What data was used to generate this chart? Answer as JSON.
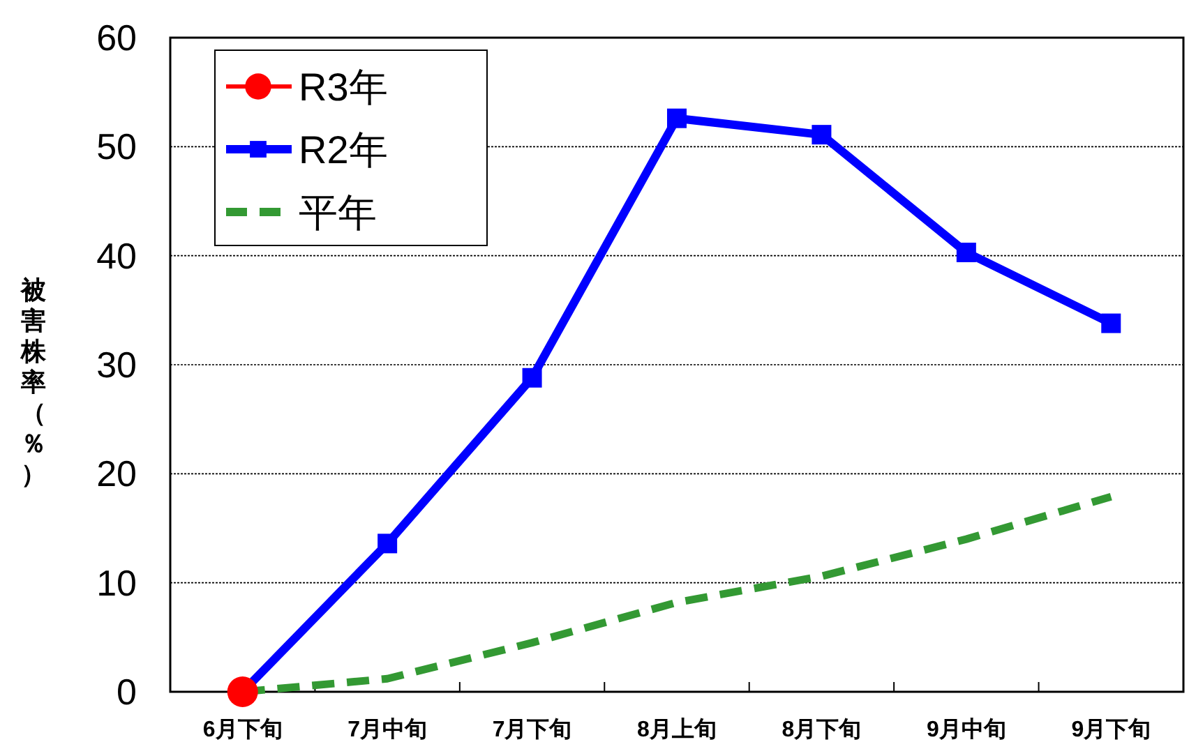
{
  "chart_data": {
    "type": "line",
    "categories": [
      "6月下旬",
      "7月中旬",
      "7月下旬",
      "8月上旬",
      "8月下旬",
      "9月中旬",
      "9月下旬"
    ],
    "ylabel": "被害株率（％）",
    "ylim": [
      0,
      60
    ],
    "yticks": [
      0,
      10,
      20,
      30,
      40,
      50,
      60
    ],
    "grid": "y",
    "legend": "top left",
    "series": [
      {
        "name": "R3年",
        "color": "#ff0000",
        "marker": "circle",
        "line_style": "solid",
        "values": [
          0,
          null,
          null,
          null,
          null,
          null,
          null
        ]
      },
      {
        "name": "R2年",
        "color": "#0000ff",
        "marker": "square",
        "line_style": "solid",
        "values": [
          0,
          13.6,
          28.8,
          52.6,
          51.1,
          40.3,
          33.8
        ]
      },
      {
        "name": "平年",
        "color": "#339933",
        "marker": "none",
        "line_style": "dashed",
        "values": [
          0,
          1.2,
          4.5,
          8.2,
          10.6,
          14.0,
          17.9
        ]
      }
    ]
  }
}
